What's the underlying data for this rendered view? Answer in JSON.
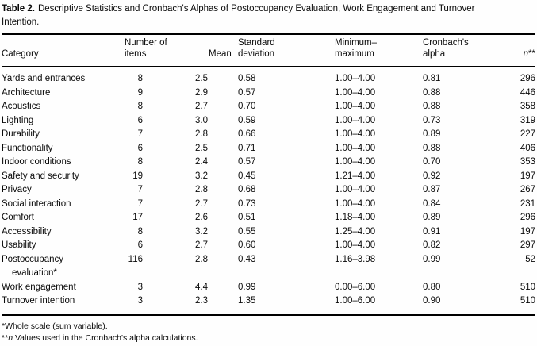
{
  "title": {
    "label": "Table 2.",
    "text": "Descriptive Statistics and Cronbach's Alphas of Postoccupancy Evaluation, Work Engagement and Turnover Intention."
  },
  "table": {
    "headers": {
      "category": "Category",
      "items_l1": "Number of",
      "items_l2": "items",
      "mean": "Mean",
      "sd_l1": "Standard",
      "sd_l2": "deviation",
      "minmax_l1": "Minimum–",
      "minmax_l2": "maximum",
      "alpha_l1": "Cronbach's",
      "alpha_l2": "alpha",
      "n": "n",
      "n_suffix": "**"
    },
    "rows": [
      {
        "category": "Yards and entrances",
        "items": "8",
        "mean": "2.5",
        "sd": "0.58",
        "minmax": "1.00–4.00",
        "alpha": "0.81",
        "n": "296"
      },
      {
        "category": "Architecture",
        "items": "9",
        "mean": "2.9",
        "sd": "0.57",
        "minmax": "1.00–4.00",
        "alpha": "0.88",
        "n": "446"
      },
      {
        "category": "Acoustics",
        "items": "8",
        "mean": "2.7",
        "sd": "0.70",
        "minmax": "1.00–4.00",
        "alpha": "0.88",
        "n": "358"
      },
      {
        "category": "Lighting",
        "items": "6",
        "mean": "3.0",
        "sd": "0.59",
        "minmax": "1.00–4.00",
        "alpha": "0.73",
        "n": "319"
      },
      {
        "category": "Durability",
        "items": "7",
        "mean": "2.8",
        "sd": "0.66",
        "minmax": "1.00–4.00",
        "alpha": "0.89",
        "n": "227"
      },
      {
        "category": "Functionality",
        "items": "6",
        "mean": "2.5",
        "sd": "0.71",
        "minmax": "1.00–4.00",
        "alpha": "0.88",
        "n": "406"
      },
      {
        "category": "Indoor conditions",
        "items": "8",
        "mean": "2.4",
        "sd": "0.57",
        "minmax": "1.00–4.00",
        "alpha": "0.70",
        "n": "353"
      },
      {
        "category": "Safety and security",
        "items": "19",
        "mean": "3.2",
        "sd": "0.45",
        "minmax": "1.21–4.00",
        "alpha": "0.92",
        "n": "197"
      },
      {
        "category": "Privacy",
        "items": "7",
        "mean": "2.8",
        "sd": "0.68",
        "minmax": "1.00–4.00",
        "alpha": "0.87",
        "n": "267"
      },
      {
        "category": "Social interaction",
        "items": "7",
        "mean": "2.7",
        "sd": "0.73",
        "minmax": "1.00–4.00",
        "alpha": "0.84",
        "n": "231"
      },
      {
        "category": "Comfort",
        "items": "17",
        "mean": "2.6",
        "sd": "0.51",
        "minmax": "1.18–4.00",
        "alpha": "0.89",
        "n": "296"
      },
      {
        "category": "Accessibility",
        "items": "8",
        "mean": "3.2",
        "sd": "0.55",
        "minmax": "1.25–4.00",
        "alpha": "0.91",
        "n": "197"
      },
      {
        "category": "Usability",
        "items": "6",
        "mean": "2.7",
        "sd": "0.60",
        "minmax": "1.00–4.00",
        "alpha": "0.82",
        "n": "297"
      },
      {
        "category": "Postoccupancy evaluation*",
        "items": "116",
        "mean": "2.8",
        "sd": "0.43",
        "minmax": "1.16–3.98",
        "alpha": "0.99",
        "n": "52"
      },
      {
        "category": "Work engagement",
        "items": "3",
        "mean": "4.4",
        "sd": "0.99",
        "minmax": "0.00–6.00",
        "alpha": "0.80",
        "n": "510"
      },
      {
        "category": "Turnover intention",
        "items": "3",
        "mean": "2.3",
        "sd": "1.35",
        "minmax": "1.00–6.00",
        "alpha": "0.90",
        "n": "510"
      }
    ]
  },
  "footnotes": {
    "f1": "*Whole scale (sum variable).",
    "f2_prefix": "**",
    "f2_n": "n",
    "f2_rest": " Values used in the Cronbach's alpha calculations."
  }
}
